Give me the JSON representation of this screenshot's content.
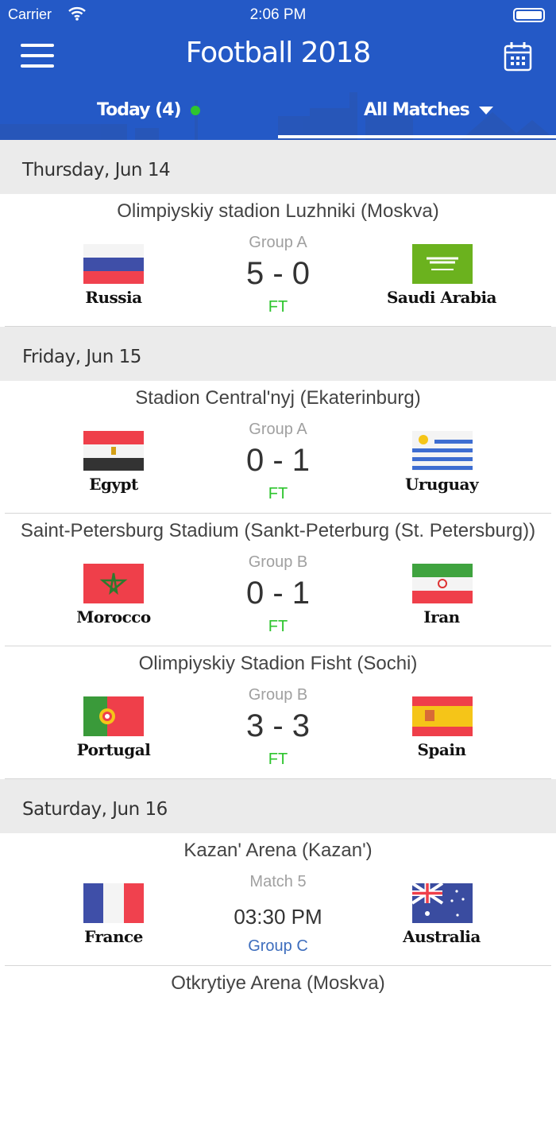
{
  "status_bar": {
    "carrier": "Carrier",
    "time": "2:06 PM"
  },
  "header": {
    "title": "Football 2018",
    "tabs": [
      {
        "label": "Today (4)"
      },
      {
        "label": "All Matches"
      }
    ],
    "accent": "#2459c6"
  },
  "days": [
    {
      "label": "Thursday, Jun 14",
      "matches": [
        {
          "venue": "Olimpiyskiy stadion Luzhniki (Moskva)",
          "group": "Group A",
          "score": "5 - 0",
          "status": "FT",
          "home": "Russia",
          "away": "Saudi Arabia"
        }
      ]
    },
    {
      "label": "Friday, Jun 15",
      "matches": [
        {
          "venue": "Stadion Central'nyj (Ekaterinburg)",
          "group": "Group A",
          "score": "0 - 1",
          "status": "FT",
          "home": "Egypt",
          "away": "Uruguay"
        },
        {
          "venue": "Saint-Petersburg Stadium (Sankt-Peterburg (St. Petersburg))",
          "group": "Group B",
          "score": "0 - 1",
          "status": "FT",
          "home": "Morocco",
          "away": "Iran"
        },
        {
          "venue": "Olimpiyskiy Stadion Fisht (Sochi)",
          "group": "Group B",
          "score": "3 - 3",
          "status": "FT",
          "home": "Portugal",
          "away": "Spain"
        }
      ]
    },
    {
      "label": "Saturday, Jun 16",
      "matches": [
        {
          "venue": "Kazan' Arena (Kazan')",
          "match": "Match 5",
          "time": "03:30 PM",
          "group": "Group C",
          "home": "France",
          "away": "Australia"
        },
        {
          "venue": "Otkrytiye Arena (Moskva)"
        }
      ]
    }
  ]
}
